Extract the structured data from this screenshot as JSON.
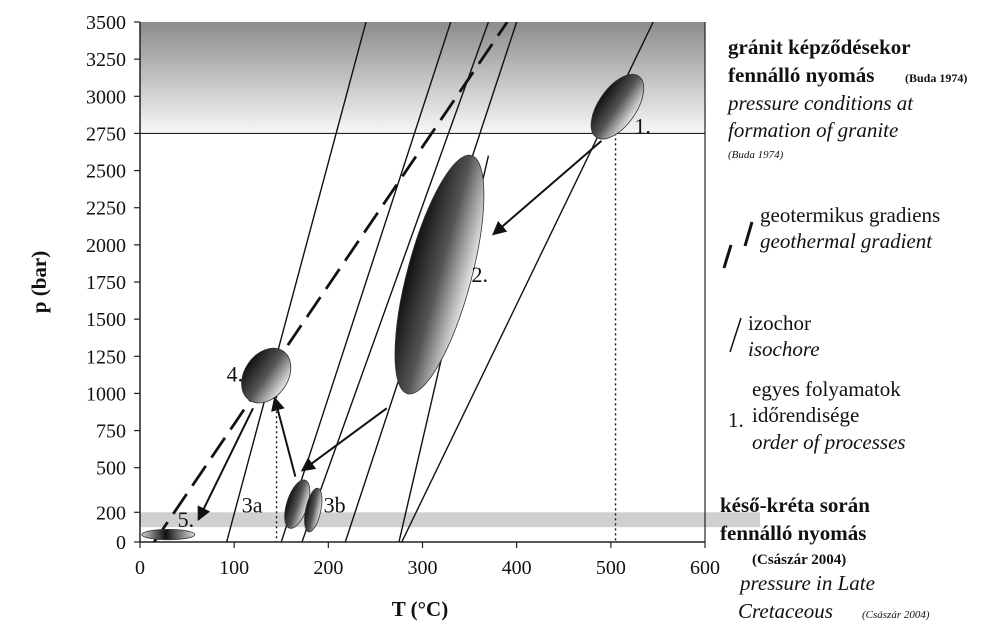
{
  "chart_data": {
    "type": "scatter",
    "xlabel": "T (°C)",
    "ylabel": "p (bar)",
    "xlim": [
      0,
      600
    ],
    "ylim": [
      0,
      3500
    ],
    "x_ticks": [
      "0",
      "100",
      "200",
      "300",
      "400",
      "500",
      "600"
    ],
    "y_ticks": [
      "0",
      "200",
      "500",
      "750",
      "1000",
      "1250",
      "1500",
      "1750",
      "2000",
      "2250",
      "2500",
      "2750",
      "3000",
      "3250",
      "3500"
    ],
    "bands": [
      {
        "name": "granite_formation_pressure",
        "y_from": 2750,
        "y_to": 3500,
        "color": "#b0b0b0"
      },
      {
        "name": "late_cretaceous_pressure",
        "y_from": 100,
        "y_to": 200,
        "color": "#d0d0d0"
      }
    ],
    "geothermal_gradient": {
      "points": [
        [
          15,
          0
        ],
        [
          390,
          3500
        ]
      ],
      "style": "dashed"
    },
    "isochores": [
      {
        "points": [
          [
            92,
            0
          ],
          [
            240,
            3500
          ]
        ]
      },
      {
        "points": [
          [
            150,
            0
          ],
          [
            330,
            3500
          ]
        ]
      },
      {
        "points": [
          [
            172,
            0
          ],
          [
            370,
            3500
          ]
        ]
      },
      {
        "points": [
          [
            218,
            0
          ],
          [
            400,
            3500
          ]
        ]
      },
      {
        "points": [
          [
            275,
            0
          ],
          [
            370,
            2600
          ]
        ]
      },
      {
        "points": [
          [
            278,
            0
          ],
          [
            545,
            3500
          ]
        ]
      }
    ],
    "vertical_markers": [
      {
        "x": 145,
        "y_to": 1250
      },
      {
        "x": 505,
        "y_to": 2750
      }
    ],
    "regions": [
      {
        "label": "1.",
        "cx": 507,
        "cy": 2930,
        "rx_deg": 20,
        "ry_bar": 250,
        "angle": 35,
        "label_x": 525,
        "label_y": 2750
      },
      {
        "label": "2.",
        "cx": 318,
        "cy": 1800,
        "rx_deg": 34,
        "ry_bar": 830,
        "angle": 15,
        "label_x": 352,
        "label_y": 1750
      },
      {
        "label": "3a",
        "cx": 167,
        "cy": 255,
        "rx_deg": 11,
        "ry_bar": 170,
        "angle": 18,
        "label_x": 108,
        "label_y": 200
      },
      {
        "label": "3b",
        "cx": 184,
        "cy": 215,
        "rx_deg": 8,
        "ry_bar": 150,
        "angle": 12,
        "label_x": 195,
        "label_y": 200
      },
      {
        "label": "4.",
        "cx": 134,
        "cy": 1120,
        "rx_deg": 23,
        "ry_bar": 200,
        "angle": 35,
        "label_x": 92,
        "label_y": 1080
      },
      {
        "label": "5.",
        "cx": 30,
        "cy": 50,
        "rx_deg": 28,
        "ry_bar": 35,
        "angle": 0,
        "label_x": 40,
        "label_y": 100
      }
    ],
    "arrows": [
      {
        "from": [
          490,
          2700
        ],
        "to": [
          375,
          2070
        ]
      },
      {
        "from": [
          262,
          900
        ],
        "to": [
          172,
          480
        ]
      },
      {
        "from": [
          165,
          440
        ],
        "to": [
          143,
          970
        ]
      },
      {
        "from": [
          120,
          900
        ],
        "to": [
          62,
          150
        ]
      }
    ],
    "legend": {
      "granite_hu_line1": "gránit képződésekor",
      "granite_hu_line2": "fennálló nyomás",
      "granite_hu_ref": "(Buda 1974)",
      "granite_en_line1": "pressure conditions at",
      "granite_en_line2": "formation of granite",
      "granite_en_ref": "(Buda 1974)",
      "geo_hu": "geotermikus gradiens",
      "geo_en": "geothermal gradient",
      "iso_hu": "izochor",
      "iso_en": "isochore",
      "order_marker": "1.",
      "order_hu_line1": "egyes folyamatok",
      "order_hu_line2": "időrendisége",
      "order_en": "order of processes",
      "cret_hu_line1": "késő-kréta  során",
      "cret_hu_line2": "fennálló nyomás",
      "cret_hu_ref": "(Császár 2004)",
      "cret_en_line1": "pressure in Late",
      "cret_en_line2": "Cretaceous",
      "cret_en_ref": "(Császár 2004)"
    }
  }
}
